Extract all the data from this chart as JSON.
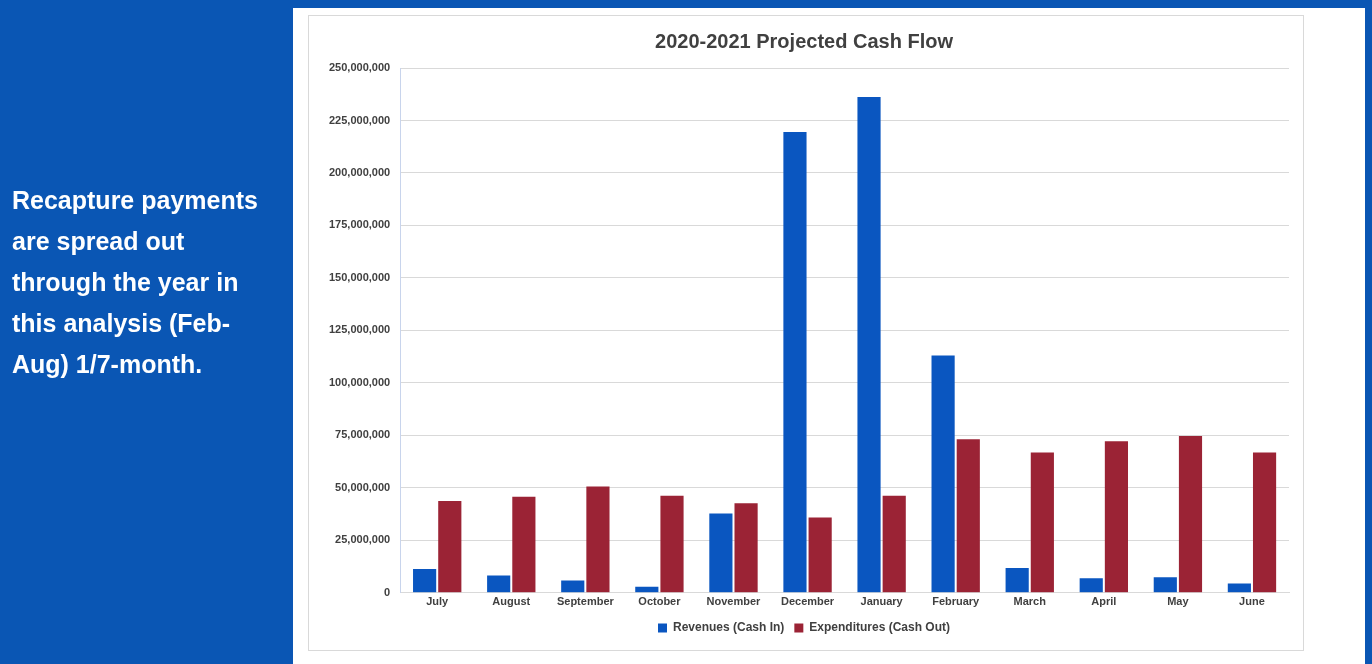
{
  "chart_data": {
    "type": "bar",
    "title": "2020-2021 Projected Cash Flow",
    "categories": [
      "July",
      "August",
      "September",
      "October",
      "November",
      "December",
      "January",
      "February",
      "March",
      "April",
      "May",
      "June"
    ],
    "series": [
      {
        "name": "Revenues (Cash In)",
        "color": "#0a56c0",
        "values": [
          11300000,
          8300000,
          5900000,
          2900000,
          37800000,
          219500000,
          236200000,
          113000000,
          11800000,
          6900000,
          7400000,
          4400000
        ]
      },
      {
        "name": "Expenditures (Cash Out)",
        "color": "#9b2335",
        "values": [
          43700000,
          45700000,
          50600000,
          46200000,
          42700000,
          35900000,
          46200000,
          73200000,
          66800000,
          72200000,
          74700000,
          66800000
        ]
      }
    ],
    "ylim": [
      0,
      250000000
    ],
    "yticks": [
      {
        "value": 0,
        "label": "0"
      },
      {
        "value": 25000000,
        "label": "25,000,000"
      },
      {
        "value": 50000000,
        "label": "50,000,000"
      },
      {
        "value": 75000000,
        "label": "75,000,000"
      },
      {
        "value": 100000000,
        "label": "100,000,000"
      },
      {
        "value": 125000000,
        "label": "125,000,000"
      },
      {
        "value": 150000000,
        "label": "150,000,000"
      },
      {
        "value": 175000000,
        "label": "175,000,000"
      },
      {
        "value": 200000000,
        "label": "200,000,000"
      },
      {
        "value": 225000000,
        "label": "225,000,000"
      },
      {
        "value": 250000000,
        "label": "250,000,000"
      }
    ],
    "grid": "y",
    "legend": "bottom",
    "annotations": [
      "Recapture payments are spread out through the year in this analysis (Feb-Aug) 1/7-month."
    ]
  }
}
